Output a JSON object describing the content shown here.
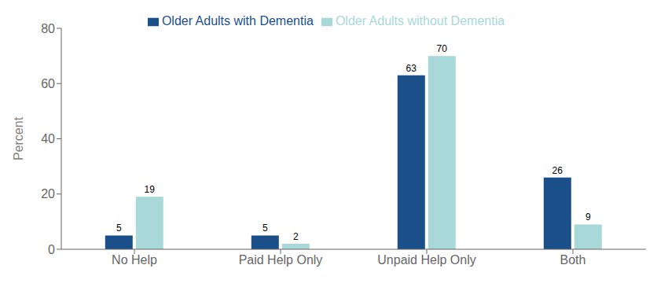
{
  "chart_data": {
    "type": "bar",
    "categories": [
      "No Help",
      "Paid Help Only",
      "Unpaid Help Only",
      "Both"
    ],
    "series": [
      {
        "name": "Older Adults with Dementia",
        "color": "#1a4f8a",
        "values": [
          5,
          5,
          63,
          26
        ]
      },
      {
        "name": "Older Adults without Dementia",
        "color": "#a8d8d8",
        "values": [
          19,
          2,
          70,
          9
        ]
      }
    ],
    "ylabel": "Percent",
    "ylim": [
      0,
      80
    ],
    "yticks": [
      0,
      20,
      40,
      60,
      80
    ],
    "grid": false,
    "legend": "top",
    "data_labels": true
  }
}
